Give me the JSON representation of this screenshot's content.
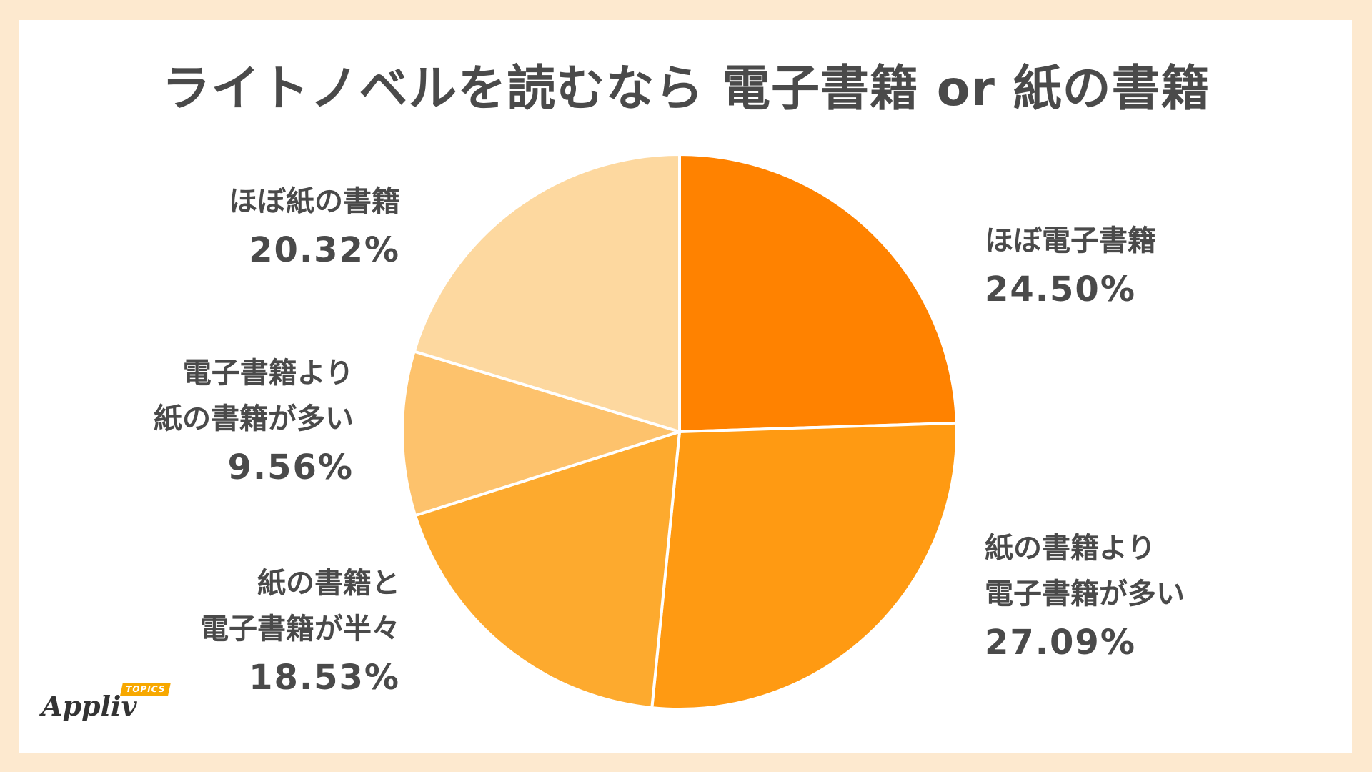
{
  "chart_data": {
    "type": "pie",
    "title": "ライトノベルを読むなら 電子書籍 or 紙の書籍",
    "slices": [
      {
        "label_lines": [
          "ほぼ電子書籍"
        ],
        "value": 24.5,
        "value_label": "24.50%",
        "color": "#ff8200"
      },
      {
        "label_lines": [
          "紙の書籍より",
          "電子書籍が多い"
        ],
        "value": 27.09,
        "value_label": "27.09%",
        "color": "#ff9a12"
      },
      {
        "label_lines": [
          "紙の書籍と",
          "電子書籍が半々"
        ],
        "value": 18.53,
        "value_label": "18.53%",
        "color": "#fdaa2e"
      },
      {
        "label_lines": [
          "電子書籍より",
          "紙の書籍が多い"
        ],
        "value": 9.56,
        "value_label": "9.56%",
        "color": "#fdc26c"
      },
      {
        "label_lines": [
          "ほぼ紙の書籍"
        ],
        "value": 20.32,
        "value_label": "20.32%",
        "color": "#fdd89f"
      }
    ],
    "start_angle": "12 o'clock",
    "direction": "clockwise",
    "legend": "none"
  },
  "logo": {
    "word": "Appliv",
    "tag": "TOPICS"
  },
  "colors": {
    "background": "#fde9cf",
    "panel": "#ffffff",
    "text": "#4a4a4a",
    "accent": "#f7a800"
  }
}
